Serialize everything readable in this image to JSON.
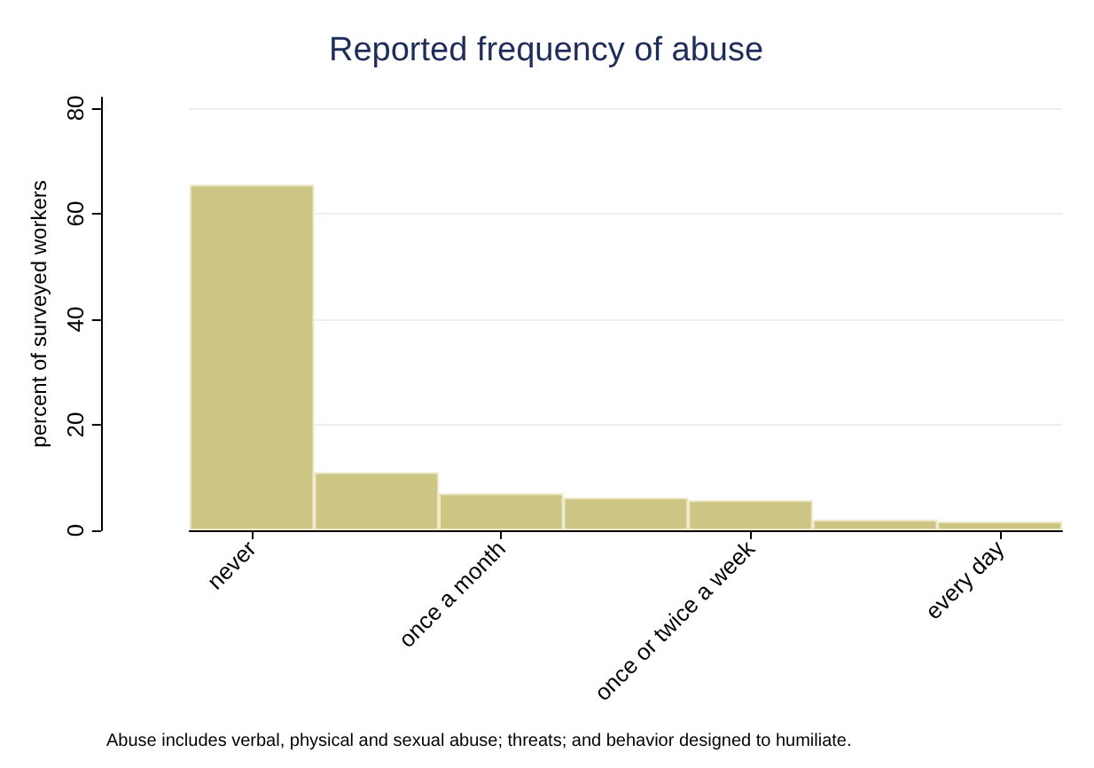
{
  "chart_data": {
    "type": "bar",
    "title": "Reported frequency of abuse",
    "ylabel": "percent of surveyed workers",
    "categories": [
      "never",
      null,
      "once a month",
      null,
      "once or twice a week",
      null,
      "every day"
    ],
    "values": [
      65.5,
      11,
      7,
      6.2,
      5.7,
      2,
      1.7
    ],
    "color": "#ccc584",
    "ylim": [
      0,
      82
    ],
    "yticks": [
      0,
      20,
      40,
      60,
      80
    ],
    "grid": "y",
    "annotations": [
      "Abuse includes verbal, physical and sexual abuse; threats; and behavior designed to humiliate."
    ]
  }
}
